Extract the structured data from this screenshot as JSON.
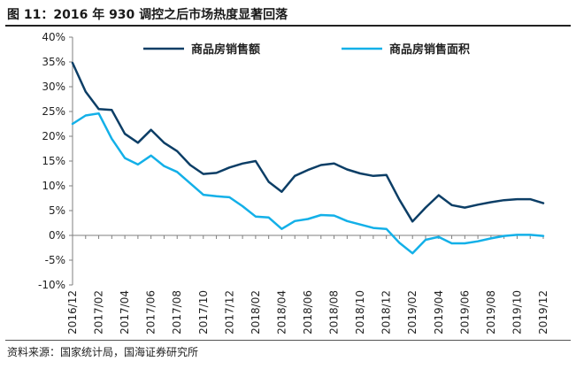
{
  "figure": {
    "title": "图 11：2016 年 930 调控之后市场热度显著回落",
    "source": "资料来源：国家统计局，国海证券研究所"
  },
  "colors": {
    "series_0": "#0c3e66",
    "series_1": "#13b0e8",
    "axis": "#7f7f7f"
  },
  "chart_data": {
    "type": "line",
    "title": "",
    "xlabel": "",
    "ylabel": "",
    "ylim": [
      -10,
      40
    ],
    "y_ticks": [
      "-10%",
      "-5%",
      "0%",
      "5%",
      "10%",
      "15%",
      "20%",
      "25%",
      "30%",
      "35%",
      "40%"
    ],
    "x_ticks": [
      "2016/12",
      "2017/02",
      "2017/04",
      "2017/06",
      "2017/08",
      "2017/10",
      "2017/12",
      "2018/02",
      "2018/04",
      "2018/06",
      "2018/08",
      "2018/10",
      "2018/12",
      "2019/02",
      "2019/04",
      "2019/06",
      "2019/08",
      "2019/10",
      "2019/12"
    ],
    "legend_position": "top",
    "x": [
      "2016/12",
      "2017/01",
      "2017/02",
      "2017/03",
      "2017/04",
      "2017/05",
      "2017/06",
      "2017/07",
      "2017/08",
      "2017/09",
      "2017/10",
      "2017/11",
      "2017/12",
      "2018/01",
      "2018/02",
      "2018/03",
      "2018/04",
      "2018/05",
      "2018/06",
      "2018/07",
      "2018/08",
      "2018/09",
      "2018/10",
      "2018/11",
      "2018/12",
      "2019/01",
      "2019/02",
      "2019/03",
      "2019/04",
      "2019/05",
      "2019/06",
      "2019/07",
      "2019/08",
      "2019/09",
      "2019/10",
      "2019/11",
      "2019/12"
    ],
    "series": [
      {
        "name": "商品房销售额",
        "values": [
          34.8,
          29.0,
          25.5,
          25.3,
          20.5,
          18.7,
          21.3,
          18.7,
          17.0,
          14.2,
          12.4,
          12.6,
          13.7,
          14.5,
          15.0,
          10.8,
          8.8,
          12.0,
          13.2,
          14.2,
          14.5,
          13.3,
          12.5,
          12.0,
          12.2,
          7.2,
          2.8,
          5.6,
          8.1,
          6.1,
          5.6,
          6.2,
          6.7,
          7.1,
          7.3,
          7.3,
          6.5
        ]
      },
      {
        "name": "商品房销售面积",
        "values": [
          22.5,
          24.2,
          24.6,
          19.5,
          15.6,
          14.3,
          16.1,
          14.0,
          12.8,
          10.5,
          8.2,
          7.9,
          7.7,
          5.9,
          3.8,
          3.6,
          1.3,
          2.9,
          3.3,
          4.1,
          4.0,
          2.9,
          2.2,
          1.5,
          1.3,
          -1.5,
          -3.6,
          -0.9,
          -0.3,
          -1.6,
          -1.6,
          -1.2,
          -0.6,
          -0.1,
          0.1,
          0.1,
          -0.1
        ]
      }
    ]
  }
}
